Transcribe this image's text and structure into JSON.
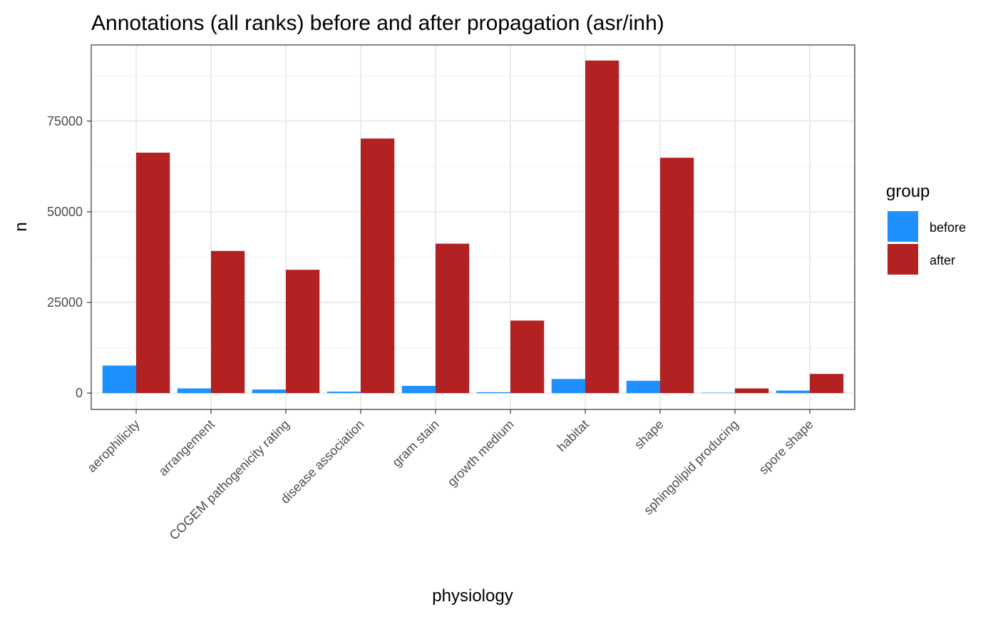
{
  "chart_data": {
    "type": "bar",
    "title": "Annotations (all ranks) before and after propagation (asr/inh)",
    "xlabel": "physiology",
    "ylabel": "n",
    "ylim": [
      -4500,
      96000
    ],
    "yticks": [
      0,
      25000,
      50000,
      75000
    ],
    "ytick_labels": [
      "0",
      "25000",
      "50000",
      "75000"
    ],
    "grid": true,
    "legend": {
      "title": "group",
      "position": "right"
    },
    "categories": [
      "aerophilicity",
      "arrangement",
      "COGEM pathogenicity rating",
      "disease association",
      "gram stain",
      "growth medium",
      "habitat",
      "shape",
      "sphingolipid producing",
      "spore shape"
    ],
    "series": [
      {
        "name": "before",
        "color": "#1E90FF",
        "values": [
          7600,
          1300,
          1000,
          400,
          2000,
          250,
          3900,
          3400,
          100,
          700
        ]
      },
      {
        "name": "after",
        "color": "#B22222",
        "values": [
          66300,
          39200,
          34000,
          70200,
          41200,
          20000,
          91700,
          64900,
          1300,
          5300
        ]
      }
    ]
  }
}
